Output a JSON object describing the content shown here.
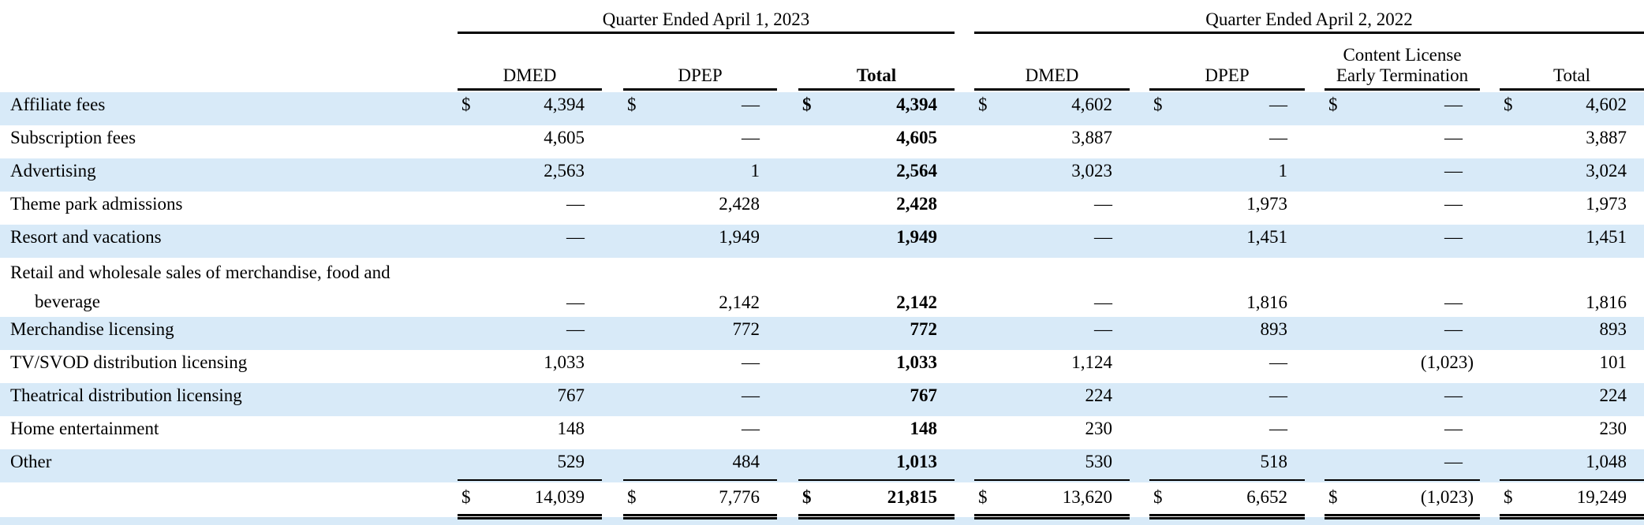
{
  "groups": {
    "q2023": "Quarter Ended April 1, 2023",
    "q2022": "Quarter Ended April 2, 2022"
  },
  "columns": {
    "dmed_2023": "DMED",
    "dpep_2023": "DPEP",
    "total_2023": "Total",
    "dmed_2022": "DMED",
    "dpep_2022": "DPEP",
    "clet_2022": "Content License Early Termination",
    "total_2022": "Total"
  },
  "currency": "$",
  "rows": [
    {
      "label": "Affiliate fees",
      "values": [
        "4,394",
        "—",
        "4,394",
        "4,602",
        "—",
        "—",
        "4,602"
      ]
    },
    {
      "label": "Subscription fees",
      "values": [
        "4,605",
        "—",
        "4,605",
        "3,887",
        "—",
        "—",
        "3,887"
      ]
    },
    {
      "label": "Advertising",
      "values": [
        "2,563",
        "1",
        "2,564",
        "3,023",
        "1",
        "—",
        "3,024"
      ]
    },
    {
      "label": "Theme park admissions",
      "values": [
        "—",
        "2,428",
        "2,428",
        "—",
        "1,973",
        "—",
        "1,973"
      ]
    },
    {
      "label": "Resort and vacations",
      "values": [
        "—",
        "1,949",
        "1,949",
        "—",
        "1,451",
        "—",
        "1,451"
      ]
    },
    {
      "label_line1": "Retail and wholesale sales of merchandise, food and",
      "label_line2": "beverage",
      "values": [
        "—",
        "2,142",
        "2,142",
        "—",
        "1,816",
        "—",
        "1,816"
      ]
    },
    {
      "label": "Merchandise licensing",
      "values": [
        "—",
        "772",
        "772",
        "—",
        "893",
        "—",
        "893"
      ]
    },
    {
      "label": "TV/SVOD distribution licensing",
      "values": [
        "1,033",
        "—",
        "1,033",
        "1,124",
        "—",
        "(1,023)",
        "101"
      ]
    },
    {
      "label": "Theatrical distribution licensing",
      "values": [
        "767",
        "—",
        "767",
        "224",
        "—",
        "—",
        "224"
      ]
    },
    {
      "label": "Home entertainment",
      "values": [
        "148",
        "—",
        "148",
        "230",
        "—",
        "—",
        "230"
      ]
    },
    {
      "label": "Other",
      "values": [
        "529",
        "484",
        "1,013",
        "530",
        "518",
        "—",
        "1,048"
      ]
    }
  ],
  "totals": [
    "14,039",
    "7,776",
    "21,815",
    "13,620",
    "6,652",
    "(1,023)",
    "19,249"
  ]
}
